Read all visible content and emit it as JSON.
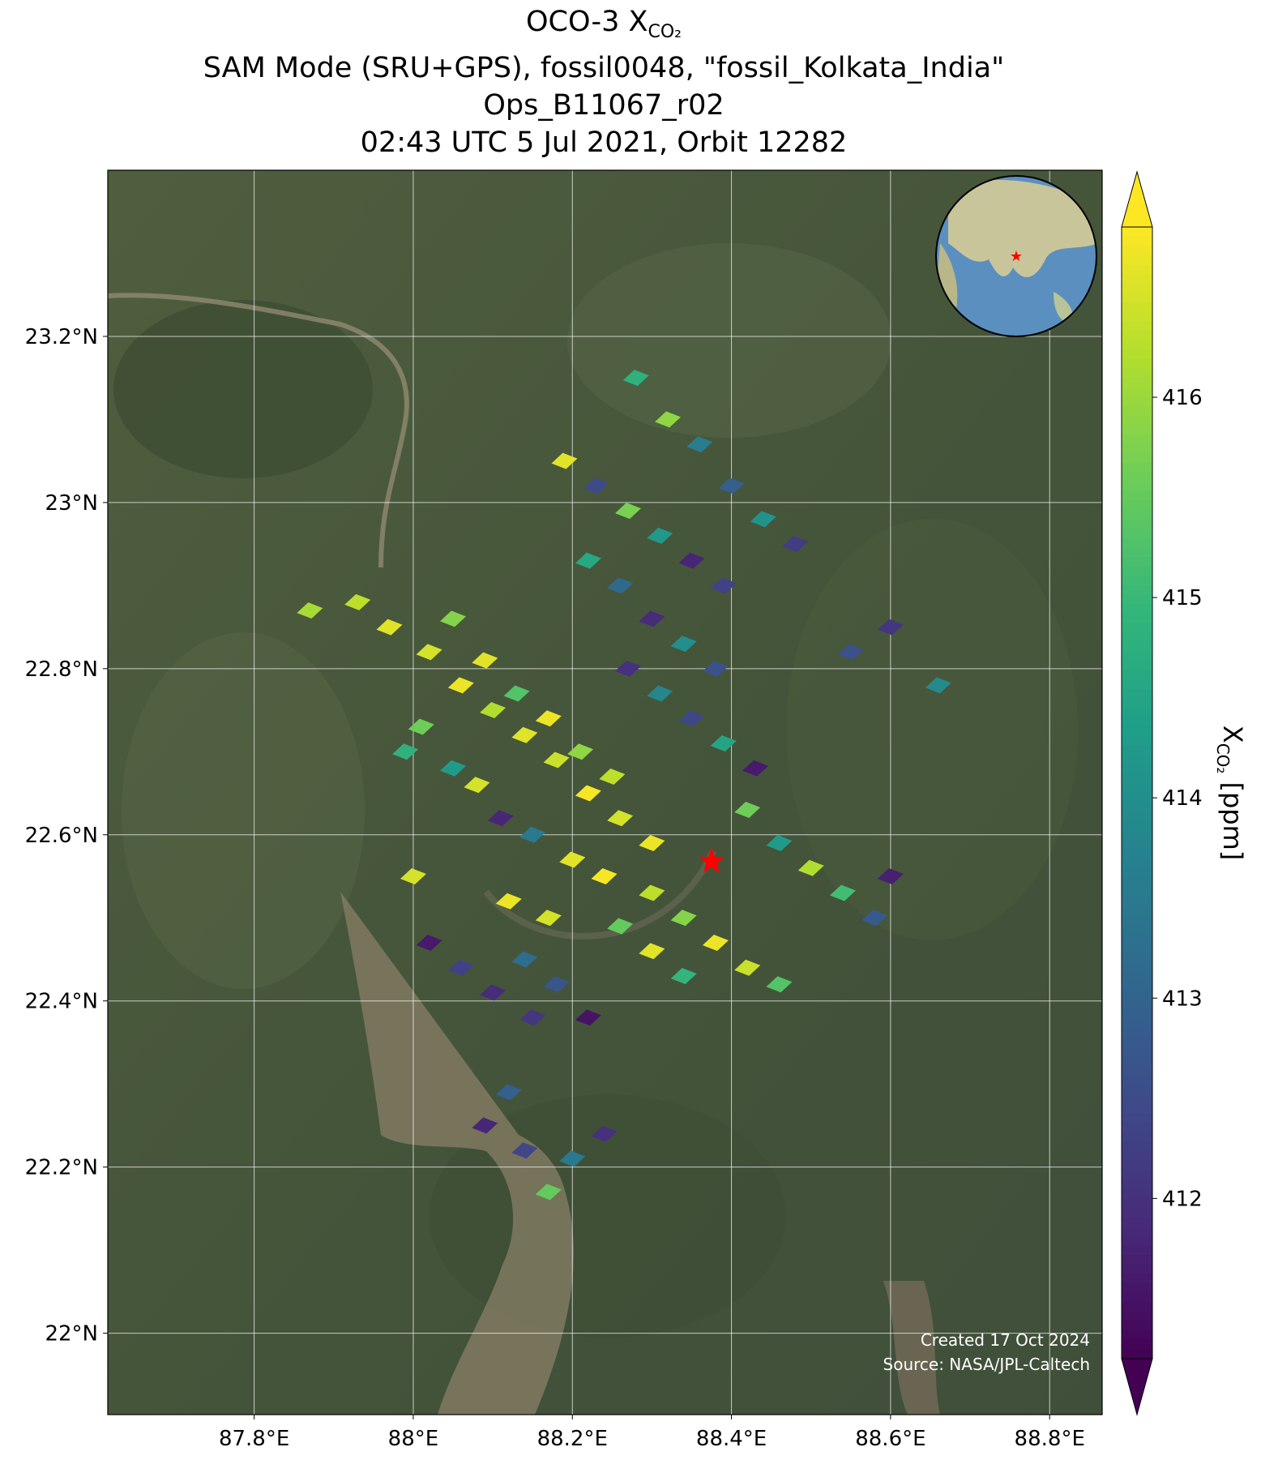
{
  "chart_data": {
    "type": "map",
    "title": [
      "OCO-3 X",
      "SAM Mode (SRU+GPS), fossil0048, \"fossil_Kolkata_India\"",
      "Ops_B11067_r02",
      "02:43 UTC 5 Jul 2021, Orbit 12282"
    ],
    "title_subscript": "CO₂",
    "colorbar_label": {
      "text": "X",
      "subscript": "CO₂",
      "unit": "[ppm]"
    },
    "annotations": [
      "Created 17 Oct 2024",
      "Source: NASA/JPL-Caltech"
    ],
    "xlim": [
      87.616,
      88.866
    ],
    "ylim": [
      21.902,
      23.4
    ],
    "xticks": [
      {
        "value": 87.8,
        "label": "87.8°E"
      },
      {
        "value": 88,
        "label": "88°E"
      },
      {
        "value": 88.2,
        "label": "88.2°E"
      },
      {
        "value": 88.4,
        "label": "88.4°E"
      },
      {
        "value": 88.6,
        "label": "88.6°E"
      },
      {
        "value": 88.8,
        "label": "88.8°E"
      }
    ],
    "yticks": [
      {
        "value": 22,
        "label": "22°N"
      },
      {
        "value": 22.2,
        "label": "22.2°N"
      },
      {
        "value": 22.4,
        "label": "22.4°N"
      },
      {
        "value": 22.6,
        "label": "22.6°N"
      },
      {
        "value": 22.8,
        "label": "22.8°N"
      },
      {
        "value": 23,
        "label": "23°N"
      },
      {
        "value": 23.2,
        "label": "23.2°N"
      }
    ],
    "clim": [
      411.2,
      416.85
    ],
    "cticks": [
      412,
      413,
      414,
      415,
      416
    ],
    "colormap": "viridis",
    "grid": true,
    "target": {
      "x": 88.375,
      "y": 22.568,
      "color": "#ff0000"
    },
    "x": [
      87.93,
      87.97,
      88.02,
      88.06,
      88.1,
      88.14,
      88.18,
      88.22,
      88.26,
      88.3,
      88.05,
      88.09,
      88.13,
      88.17,
      88.21,
      88.25,
      88.11,
      88.15,
      88.2,
      88.24,
      88.12,
      88.17,
      88.01,
      88.05,
      88.08,
      87.99,
      88.19,
      88.23,
      88.27,
      88.31,
      88.35,
      88.39,
      88.22,
      88.26,
      88.3,
      88.34,
      88.38,
      88.27,
      88.31,
      88.35,
      88.39,
      88.43,
      88.28,
      88.32,
      88.36,
      88.4,
      88.44,
      88.48,
      88.42,
      88.46,
      88.5,
      88.54,
      88.58,
      88.6,
      88.3,
      88.34,
      88.38,
      88.42,
      88.46,
      88.26,
      88.3,
      88.34,
      88.02,
      88.06,
      88.1,
      88.14,
      88.18,
      88.22,
      88.15,
      88.09,
      88.14,
      88.2,
      88.24,
      88.17,
      88.12,
      88.6,
      88.66,
      88.55,
      87.87,
      88.0
    ],
    "y": [
      22.88,
      22.85,
      22.82,
      22.78,
      22.75,
      22.72,
      22.69,
      22.65,
      22.62,
      22.59,
      22.86,
      22.81,
      22.77,
      22.74,
      22.7,
      22.67,
      22.62,
      22.6,
      22.57,
      22.55,
      22.52,
      22.5,
      22.73,
      22.68,
      22.66,
      22.7,
      23.05,
      23.02,
      22.99,
      22.96,
      22.93,
      22.9,
      22.93,
      22.9,
      22.86,
      22.83,
      22.8,
      22.8,
      22.77,
      22.74,
      22.71,
      22.68,
      23.15,
      23.1,
      23.07,
      23.02,
      22.98,
      22.95,
      22.63,
      22.59,
      22.56,
      22.53,
      22.5,
      22.55,
      22.53,
      22.5,
      22.47,
      22.44,
      22.42,
      22.49,
      22.46,
      22.43,
      22.47,
      22.44,
      22.41,
      22.45,
      22.42,
      22.38,
      22.38,
      22.25,
      22.22,
      22.21,
      22.24,
      22.17,
      22.29,
      22.85,
      22.78,
      22.82,
      22.87,
      22.55
    ],
    "values": [
      416.3,
      416.6,
      416.5,
      416.7,
      416.2,
      416.6,
      416.4,
      416.8,
      416.5,
      416.7,
      415.8,
      416.6,
      415.3,
      416.7,
      415.9,
      416.3,
      411.8,
      413.5,
      416.6,
      416.8,
      416.7,
      416.5,
      415.6,
      414.3,
      416.5,
      414.8,
      416.6,
      412.5,
      415.7,
      414.2,
      411.8,
      412.3,
      414.6,
      413.1,
      411.9,
      414.0,
      412.6,
      412.0,
      413.8,
      412.4,
      414.5,
      411.6,
      414.8,
      415.9,
      413.6,
      412.9,
      414.1,
      412.2,
      415.6,
      414.3,
      416.2,
      415.1,
      412.8,
      411.7,
      416.3,
      415.8,
      416.7,
      416.4,
      415.3,
      415.5,
      416.6,
      414.9,
      411.6,
      412.3,
      411.9,
      413.2,
      412.7,
      411.5,
      412.1,
      411.8,
      412.4,
      413.5,
      412.0,
      415.5,
      412.9,
      412.1,
      413.9,
      412.6,
      416.1,
      416.5
    ]
  }
}
